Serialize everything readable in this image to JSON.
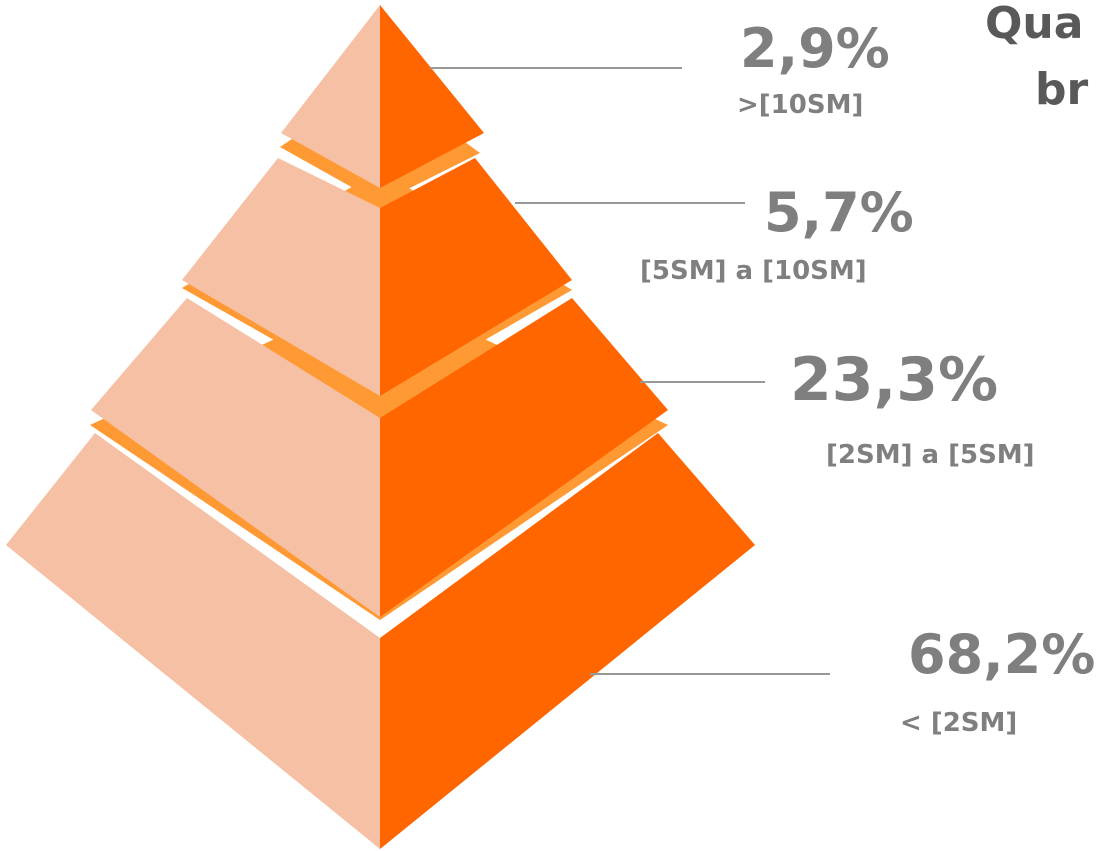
{
  "chart_data": {
    "type": "pyramid",
    "title_line1": "Qua",
    "title_line2": "br",
    "tiers": [
      {
        "value": 2.9,
        "label": "2,9%",
        "range": ">[10SM]"
      },
      {
        "value": 5.7,
        "label": "5,7%",
        "range": "[5SM] a [10SM]"
      },
      {
        "value": 23.3,
        "label": "23,3%",
        "range": "[2SM] a [5SM]"
      },
      {
        "value": 68.2,
        "label": "68,2%",
        "range": "< [2SM]"
      }
    ],
    "colors": {
      "light_face": "#f5c0a4",
      "dark_face": "#ff6600",
      "gap": "#ff9933",
      "leader": "#999999",
      "text": "#7f7f7f"
    }
  }
}
